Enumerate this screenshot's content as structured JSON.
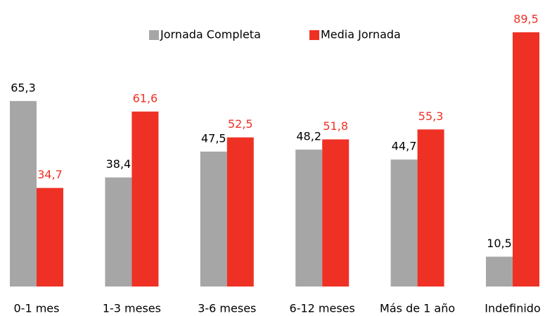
{
  "chart_data": {
    "type": "bar",
    "categories": [
      "0-1 mes",
      "1-3 meses",
      "3-6 meses",
      "6-12 meses",
      "Más de 1 año",
      "Indefinido"
    ],
    "series": [
      {
        "name": "Jornada Completa",
        "color": "#a6a6a6",
        "label_color": "#000000",
        "values": [
          65.3,
          38.4,
          47.5,
          48.2,
          44.7,
          10.5
        ],
        "value_labels": [
          "65,3",
          "38,4",
          "47,5",
          "48,2",
          "44,7",
          "10,5"
        ]
      },
      {
        "name": "Media Jornada",
        "color": "#ee3124",
        "label_color": "#ee3124",
        "values": [
          34.7,
          61.6,
          52.5,
          51.8,
          55.3,
          89.5
        ],
        "value_labels": [
          "34,7",
          "61,6",
          "52,5",
          "51,8",
          "55,3",
          "89,5"
        ]
      }
    ],
    "legend": "top"
  }
}
